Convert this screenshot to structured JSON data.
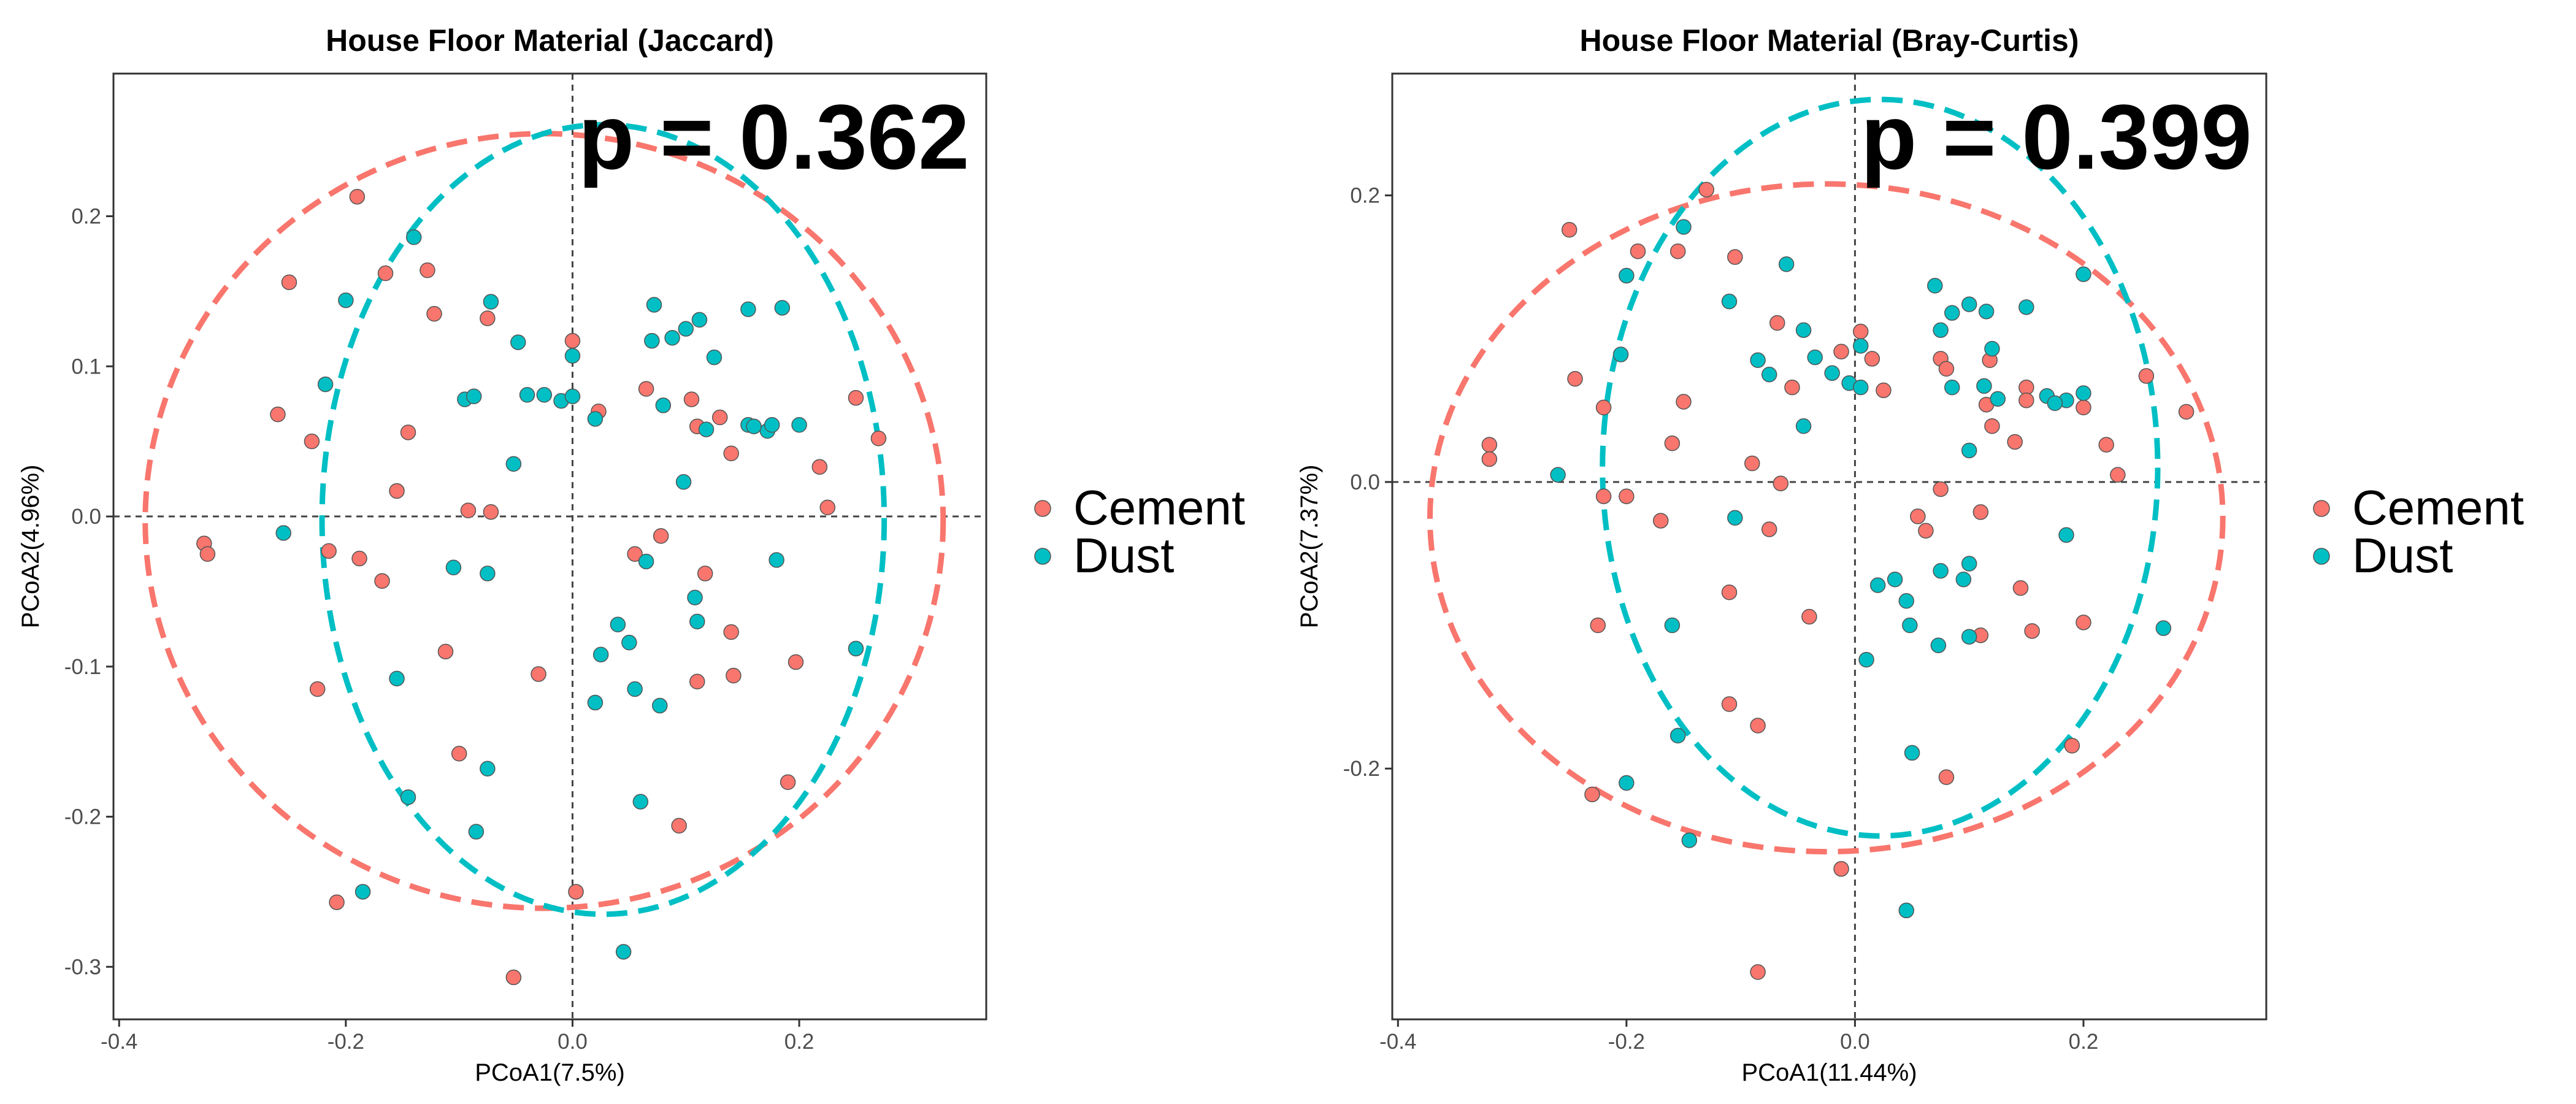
{
  "colors": {
    "cement": "#F8766D",
    "dust": "#00BFC4"
  },
  "chart_data": [
    {
      "type": "scatter",
      "title": "House Floor Material (Jaccard)",
      "xlabel": "PCoA1(7.5%)",
      "ylabel": "PCoA2(4.96%)",
      "annotation": "p = 0.362",
      "xlim": [
        -0.405,
        0.365
      ],
      "ylim": [
        -0.335,
        0.295
      ],
      "xticks": [
        -0.4,
        -0.2,
        0.0,
        0.2
      ],
      "xtick_labels": [
        "-0.4",
        "-0.2",
        "0.0",
        "0.2"
      ],
      "yticks": [
        -0.3,
        -0.2,
        -0.1,
        0.0,
        0.1,
        0.2
      ],
      "ytick_labels": [
        "-0.3",
        "-0.2",
        "-0.1",
        "0.0",
        "0.1",
        "0.2"
      ],
      "grid": false,
      "reference_lines": {
        "x": 0,
        "y": 0
      },
      "legend": {
        "position": "right",
        "labels": [
          "Cement",
          "Dust"
        ]
      },
      "ellipses": [
        {
          "group": "Cement",
          "cx": -0.025,
          "cy": -0.003,
          "rx": 0.352,
          "ry": 0.258
        },
        {
          "group": "Dust",
          "cx": 0.027,
          "cy": -0.002,
          "rx": 0.248,
          "ry": 0.263
        }
      ],
      "series": [
        {
          "name": "Cement",
          "points": [
            [
              -0.19,
              0.213
            ],
            [
              -0.25,
              0.156
            ],
            [
              -0.128,
              0.164
            ],
            [
              -0.165,
              0.162
            ],
            [
              -0.122,
              0.135
            ],
            [
              -0.075,
              0.132
            ],
            [
              -0.26,
              0.068
            ],
            [
              -0.23,
              0.05
            ],
            [
              -0.145,
              0.056
            ],
            [
              0.0,
              0.117
            ],
            [
              0.023,
              0.07
            ],
            [
              0.065,
              0.085
            ],
            [
              0.105,
              0.078
            ],
            [
              0.11,
              0.06
            ],
            [
              0.13,
              0.066
            ],
            [
              0.14,
              0.042
            ],
            [
              0.25,
              0.079
            ],
            [
              0.27,
              0.052
            ],
            [
              0.218,
              0.033
            ],
            [
              0.225,
              0.006
            ],
            [
              -0.155,
              0.017
            ],
            [
              -0.092,
              0.004
            ],
            [
              -0.072,
              0.003
            ],
            [
              -0.325,
              -0.018
            ],
            [
              -0.322,
              -0.025
            ],
            [
              -0.215,
              -0.023
            ],
            [
              -0.188,
              -0.028
            ],
            [
              -0.168,
              -0.043
            ],
            [
              -0.112,
              -0.09
            ],
            [
              -0.03,
              -0.105
            ],
            [
              0.055,
              -0.025
            ],
            [
              0.078,
              -0.013
            ],
            [
              0.117,
              -0.038
            ],
            [
              0.14,
              -0.077
            ],
            [
              0.11,
              -0.11
            ],
            [
              0.142,
              -0.106
            ],
            [
              0.197,
              -0.097
            ],
            [
              -0.225,
              -0.115
            ],
            [
              -0.1,
              -0.158
            ],
            [
              -0.052,
              -0.307
            ],
            [
              -0.208,
              -0.257
            ],
            [
              0.003,
              -0.25
            ],
            [
              0.094,
              -0.206
            ],
            [
              0.19,
              -0.177
            ]
          ]
        },
        {
          "name": "Dust",
          "points": [
            [
              -0.14,
              0.186
            ],
            [
              -0.2,
              0.144
            ],
            [
              -0.072,
              0.143
            ],
            [
              -0.218,
              0.088
            ],
            [
              -0.048,
              0.116
            ],
            [
              0.0,
              0.107
            ],
            [
              -0.095,
              0.078
            ],
            [
              -0.087,
              0.08
            ],
            [
              -0.04,
              0.081
            ],
            [
              -0.025,
              0.081
            ],
            [
              -0.01,
              0.077
            ],
            [
              0.0,
              0.08
            ],
            [
              0.02,
              0.065
            ],
            [
              0.072,
              0.141
            ],
            [
              0.1,
              0.125
            ],
            [
              0.112,
              0.131
            ],
            [
              0.155,
              0.138
            ],
            [
              0.185,
              0.139
            ],
            [
              0.07,
              0.117
            ],
            [
              0.088,
              0.119
            ],
            [
              0.125,
              0.106
            ],
            [
              0.08,
              0.074
            ],
            [
              0.155,
              0.061
            ],
            [
              0.172,
              0.057
            ],
            [
              0.176,
              0.061
            ],
            [
              0.16,
              0.06
            ],
            [
              0.2,
              0.061
            ],
            [
              0.118,
              0.058
            ],
            [
              -0.052,
              0.035
            ],
            [
              0.098,
              0.023
            ],
            [
              -0.255,
              -0.011
            ],
            [
              -0.105,
              -0.034
            ],
            [
              -0.075,
              -0.038
            ],
            [
              0.065,
              -0.03
            ],
            [
              0.108,
              -0.054
            ],
            [
              0.11,
              -0.07
            ],
            [
              0.04,
              -0.072
            ],
            [
              0.05,
              -0.084
            ],
            [
              0.025,
              -0.092
            ],
            [
              0.25,
              -0.088
            ],
            [
              0.18,
              -0.029
            ],
            [
              0.02,
              -0.124
            ],
            [
              0.055,
              -0.115
            ],
            [
              0.077,
              -0.126
            ],
            [
              -0.155,
              -0.108
            ],
            [
              -0.145,
              -0.187
            ],
            [
              -0.075,
              -0.168
            ],
            [
              -0.085,
              -0.21
            ],
            [
              -0.185,
              -0.25
            ],
            [
              0.06,
              -0.19
            ],
            [
              0.045,
              -0.29
            ]
          ]
        }
      ]
    },
    {
      "type": "scatter",
      "title": "House Floor Material (Bray-Curtis)",
      "xlabel": "PCoA1(11.44%)",
      "ylabel": "PCoA2(7.37%)",
      "annotation": "p = 0.399",
      "xlim": [
        -0.405,
        0.36
      ],
      "ylim": [
        -0.375,
        0.285
      ],
      "xticks": [
        -0.4,
        -0.2,
        0.0,
        0.2
      ],
      "xtick_labels": [
        "-0.4",
        "-0.2",
        "0.0",
        "0.2"
      ],
      "yticks": [
        -0.2,
        0.0,
        0.2
      ],
      "ytick_labels": [
        "-0.2",
        "0.0",
        "0.2"
      ],
      "grid": false,
      "reference_lines": {
        "x": 0,
        "y": 0
      },
      "legend": {
        "position": "right",
        "labels": [
          "Cement",
          "Dust"
        ]
      },
      "ellipses": [
        {
          "group": "Cement",
          "cx": -0.025,
          "cy": -0.025,
          "rx": 0.347,
          "ry": 0.233
        },
        {
          "group": "Dust",
          "cx": 0.022,
          "cy": 0.01,
          "rx": 0.243,
          "ry": 0.257
        }
      ],
      "series": [
        {
          "name": "Cement",
          "points": [
            [
              -0.13,
              0.204
            ],
            [
              -0.25,
              0.176
            ],
            [
              -0.19,
              0.161
            ],
            [
              -0.155,
              0.161
            ],
            [
              -0.105,
              0.157
            ],
            [
              -0.068,
              0.111
            ],
            [
              -0.055,
              0.066
            ],
            [
              0.005,
              0.105
            ],
            [
              -0.012,
              0.091
            ],
            [
              0.015,
              0.086
            ],
            [
              -0.245,
              0.072
            ],
            [
              -0.22,
              0.052
            ],
            [
              -0.15,
              0.056
            ],
            [
              0.025,
              0.064
            ],
            [
              0.075,
              0.086
            ],
            [
              0.08,
              0.079
            ],
            [
              0.118,
              0.085
            ],
            [
              0.15,
              0.066
            ],
            [
              0.15,
              0.057
            ],
            [
              0.115,
              0.054
            ],
            [
              0.12,
              0.039
            ],
            [
              0.14,
              0.028
            ],
            [
              0.255,
              0.074
            ],
            [
              0.2,
              0.052
            ],
            [
              0.22,
              0.026
            ],
            [
              0.23,
              0.005
            ],
            [
              0.29,
              0.049
            ],
            [
              -0.32,
              0.026
            ],
            [
              -0.32,
              0.016
            ],
            [
              -0.16,
              0.027
            ],
            [
              -0.09,
              0.013
            ],
            [
              -0.065,
              -0.001
            ],
            [
              -0.2,
              -0.01
            ],
            [
              -0.22,
              -0.01
            ],
            [
              -0.17,
              -0.027
            ],
            [
              -0.075,
              -0.033
            ],
            [
              0.055,
              -0.024
            ],
            [
              0.062,
              -0.034
            ],
            [
              0.075,
              -0.005
            ],
            [
              0.11,
              -0.021
            ],
            [
              0.145,
              -0.074
            ],
            [
              0.155,
              -0.104
            ],
            [
              0.11,
              -0.107
            ],
            [
              0.2,
              -0.098
            ],
            [
              -0.225,
              -0.1
            ],
            [
              -0.11,
              -0.077
            ],
            [
              -0.04,
              -0.094
            ],
            [
              -0.11,
              -0.155
            ],
            [
              -0.085,
              -0.17
            ],
            [
              -0.23,
              -0.218
            ],
            [
              0.08,
              -0.206
            ],
            [
              0.19,
              -0.184
            ],
            [
              -0.012,
              -0.27
            ],
            [
              -0.085,
              -0.342
            ]
          ]
        },
        {
          "name": "Dust",
          "points": [
            [
              -0.06,
              0.152
            ],
            [
              -0.15,
              0.178
            ],
            [
              -0.11,
              0.126
            ],
            [
              -0.2,
              0.144
            ],
            [
              -0.045,
              0.106
            ],
            [
              0.005,
              0.095
            ],
            [
              -0.205,
              0.089
            ],
            [
              -0.085,
              0.085
            ],
            [
              -0.035,
              0.087
            ],
            [
              -0.02,
              0.076
            ],
            [
              -0.005,
              0.069
            ],
            [
              -0.075,
              0.075
            ],
            [
              0.005,
              0.066
            ],
            [
              0.07,
              0.137
            ],
            [
              0.085,
              0.118
            ],
            [
              0.1,
              0.124
            ],
            [
              0.115,
              0.119
            ],
            [
              0.15,
              0.122
            ],
            [
              0.2,
              0.145
            ],
            [
              0.075,
              0.106
            ],
            [
              0.12,
              0.093
            ],
            [
              0.085,
              0.066
            ],
            [
              0.125,
              0.058
            ],
            [
              0.168,
              0.06
            ],
            [
              0.185,
              0.057
            ],
            [
              0.175,
              0.055
            ],
            [
              0.2,
              0.062
            ],
            [
              0.113,
              0.067
            ],
            [
              -0.045,
              0.039
            ],
            [
              0.1,
              0.022
            ],
            [
              -0.26,
              0.005
            ],
            [
              -0.105,
              -0.025
            ],
            [
              0.075,
              -0.062
            ],
            [
              0.1,
              -0.057
            ],
            [
              0.095,
              -0.068
            ],
            [
              0.02,
              -0.072
            ],
            [
              0.035,
              -0.068
            ],
            [
              0.045,
              -0.083
            ],
            [
              0.048,
              -0.1
            ],
            [
              0.1,
              -0.108
            ],
            [
              0.073,
              -0.114
            ],
            [
              0.01,
              -0.124
            ],
            [
              -0.16,
              -0.1
            ],
            [
              -0.155,
              -0.177
            ],
            [
              -0.2,
              -0.21
            ],
            [
              -0.145,
              -0.25
            ],
            [
              0.05,
              -0.189
            ],
            [
              0.045,
              -0.299
            ],
            [
              0.27,
              -0.102
            ],
            [
              0.185,
              -0.037
            ]
          ]
        }
      ]
    }
  ]
}
